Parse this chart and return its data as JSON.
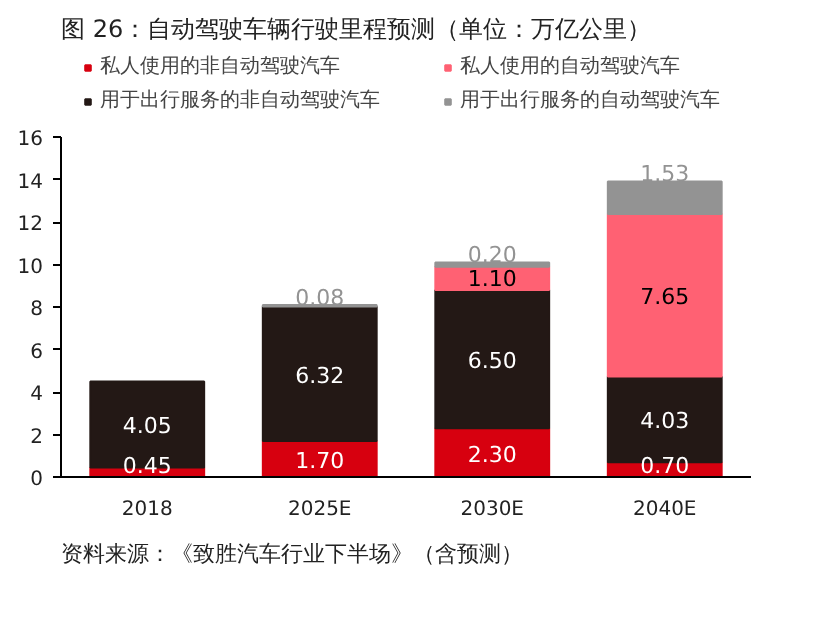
{
  "chart_data": {
    "type": "bar",
    "title": "图 26：自动驾驶车辆行驶里程预测（单位：万亿公里）",
    "categories": [
      "2018",
      "2025E",
      "2030E",
      "2040E"
    ],
    "series": [
      {
        "name": "私人使用的非自动驾驶汽车",
        "color": "#d7000f",
        "values": [
          0.45,
          1.7,
          2.3,
          0.7
        ],
        "value_labels": [
          "0.45",
          "1.70",
          "2.30",
          "0.70"
        ]
      },
      {
        "name": "用于出行服务的非自动驾驶汽车",
        "color": "#231815",
        "values": [
          4.05,
          6.32,
          6.5,
          4.03
        ],
        "value_labels": [
          "4.05",
          "6.32",
          "6.50",
          "4.03"
        ]
      },
      {
        "name": "私人使用的自动驾驶汽车",
        "color": "#ff6173",
        "values": [
          null,
          null,
          1.1,
          7.65
        ],
        "value_labels": [
          null,
          null,
          "1.10",
          "7.65"
        ]
      },
      {
        "name": "用于出行服务的自动驾驶汽车",
        "color": "#939393",
        "values": [
          null,
          0.08,
          0.2,
          1.53
        ],
        "value_labels": [
          null,
          "0.08",
          "0.20",
          "1.53"
        ]
      }
    ],
    "stacked": true,
    "ylim": [
      0,
      16
    ],
    "yticks": [
      0,
      2,
      4,
      6,
      8,
      10,
      12,
      14,
      16
    ],
    "grid": false,
    "legend": "top",
    "annotations": [
      "资料来源：《致胜汽车行业下半场》（含预测）"
    ]
  }
}
